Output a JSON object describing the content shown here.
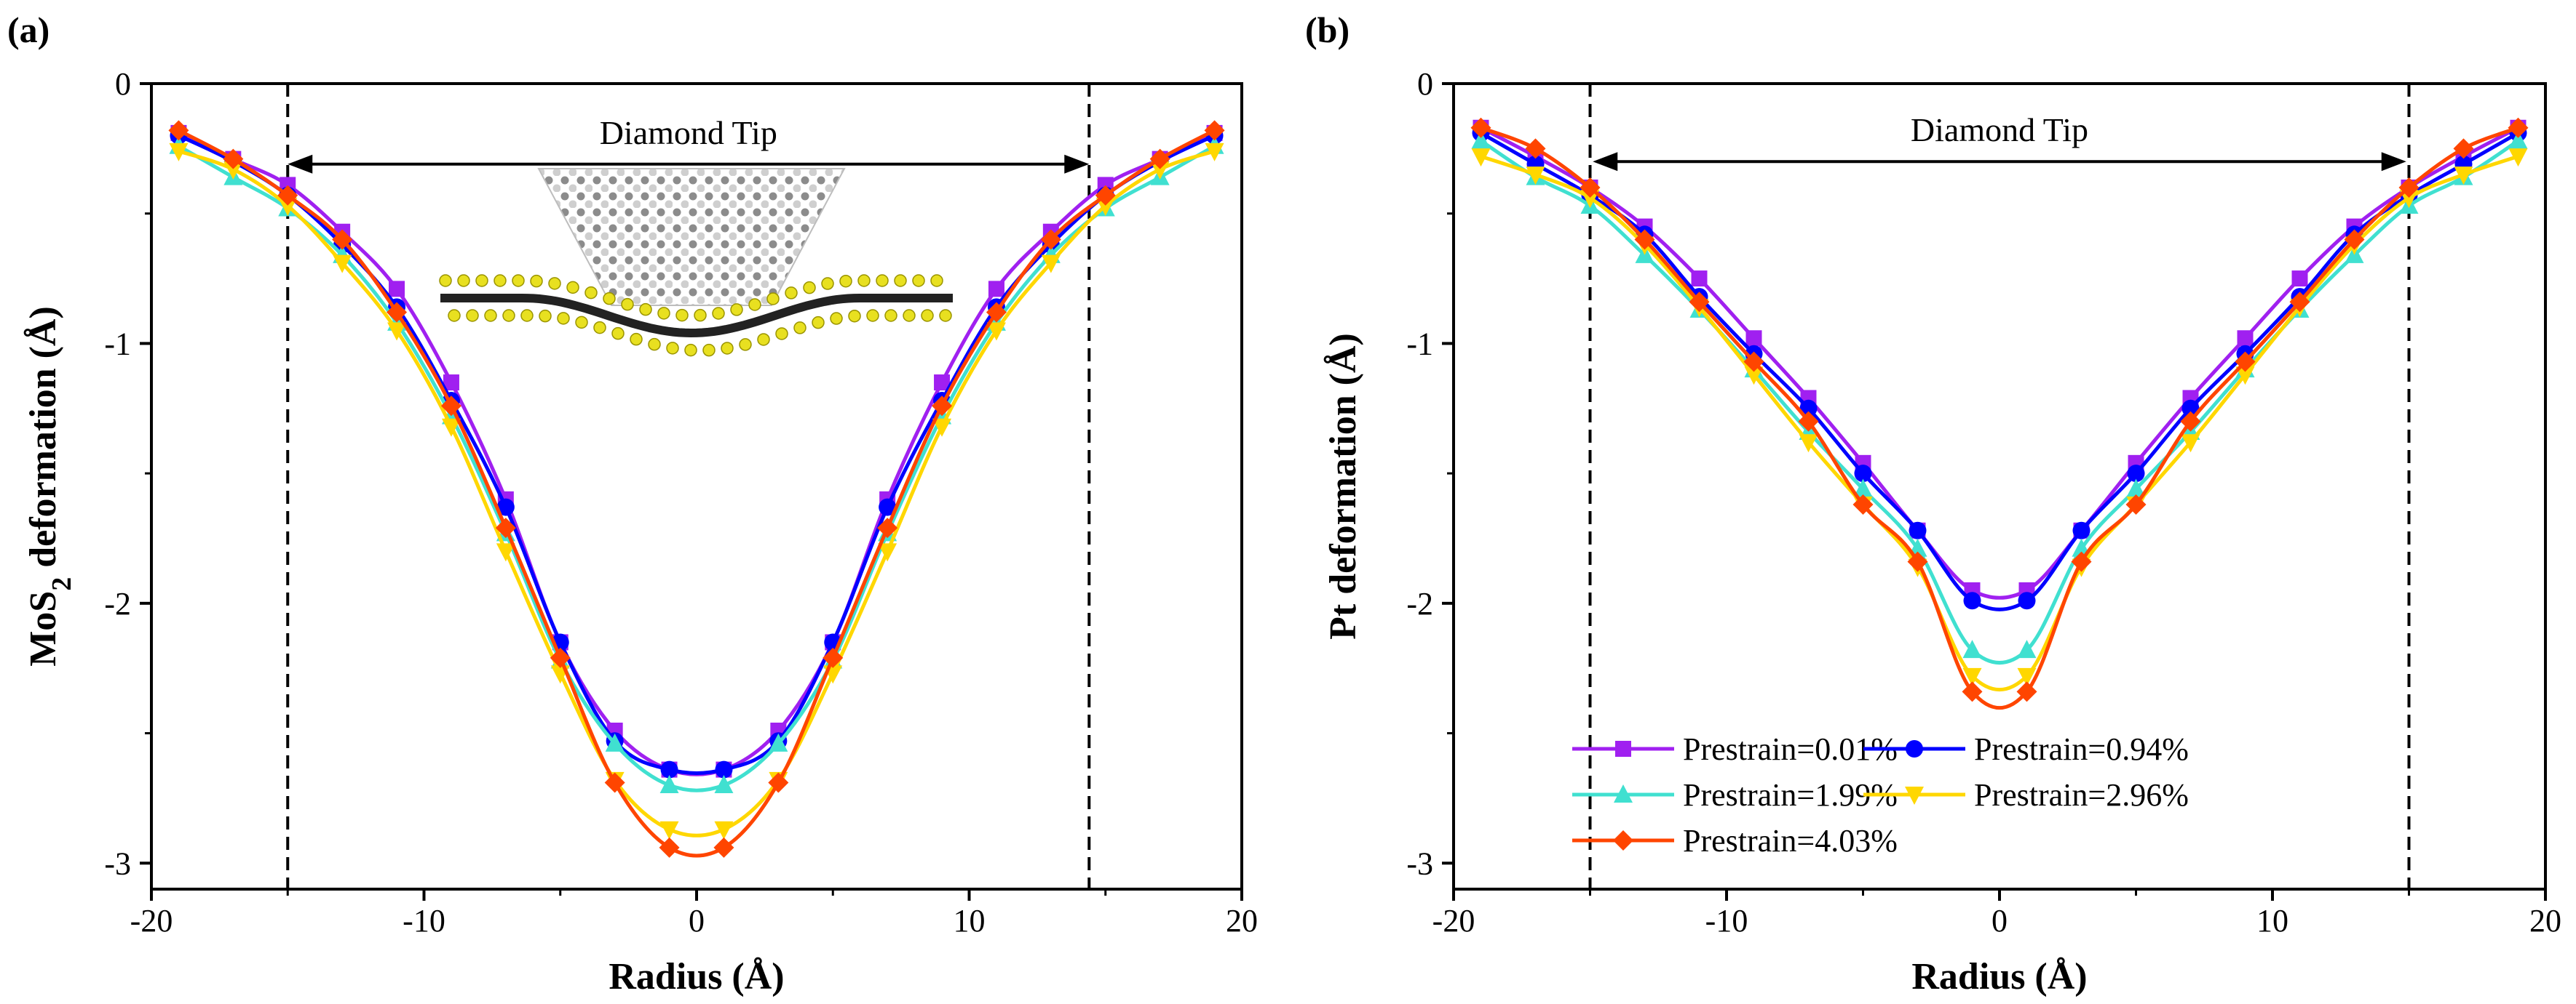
{
  "chart_data": [
    {
      "panel": "(a)",
      "type": "line",
      "title": "",
      "xlabel": "Radius (Å)",
      "ylabel": "MoS2 deformation (Å)",
      "ylabel_main": "MoS",
      "ylabel_sub": "2",
      "ylabel_rest": " deformation (Å)",
      "xlim": [
        -20,
        20
      ],
      "ylim": [
        -3.1,
        0
      ],
      "xticks": [
        -20,
        -10,
        0,
        10,
        20
      ],
      "yticks": [
        0,
        -1,
        -2,
        -3
      ],
      "xtick_labels": [
        "-20",
        "-10",
        "0",
        "10",
        "20"
      ],
      "ytick_labels": [
        "0",
        "-1",
        "-2",
        "-3"
      ],
      "grid": false,
      "annotation": {
        "text": "Diamond Tip",
        "x_from": -15,
        "x_to": 14.4,
        "y": -0.31
      },
      "dashed_lines_x": [
        -15,
        14.4
      ],
      "inset": "diamond-tip-on-MoS2-structure",
      "x": [
        -19,
        -17,
        -15,
        -13,
        -11,
        -9,
        -7,
        -5,
        -3,
        -1,
        1,
        3,
        5,
        7,
        9,
        11,
        13,
        15,
        17,
        19
      ],
      "series": [
        {
          "name": "Prestrain=0.01%",
          "color": "#A020F0",
          "marker": "square",
          "values": [
            -0.19,
            -0.29,
            -0.39,
            -0.57,
            -0.79,
            -1.15,
            -1.6,
            -2.15,
            -2.49,
            -2.64,
            -2.64,
            -2.49,
            -2.15,
            -1.6,
            -1.15,
            -0.79,
            -0.57,
            -0.39,
            -0.29,
            -0.19
          ]
        },
        {
          "name": "Prestrain=0.94%",
          "color": "#0000FF",
          "marker": "circle",
          "values": [
            -0.2,
            -0.3,
            -0.43,
            -0.62,
            -0.86,
            -1.22,
            -1.63,
            -2.15,
            -2.53,
            -2.64,
            -2.64,
            -2.53,
            -2.15,
            -1.63,
            -1.22,
            -0.86,
            -0.62,
            -0.43,
            -0.3,
            -0.2
          ]
        },
        {
          "name": "Prestrain=1.99%",
          "color": "#40E0D0",
          "marker": "triangle-up",
          "values": [
            -0.24,
            -0.36,
            -0.48,
            -0.66,
            -0.92,
            -1.28,
            -1.73,
            -2.22,
            -2.54,
            -2.7,
            -2.7,
            -2.54,
            -2.22,
            -1.73,
            -1.28,
            -0.92,
            -0.66,
            -0.48,
            -0.36,
            -0.24
          ]
        },
        {
          "name": "Prestrain=2.96%",
          "color": "#FFD700",
          "marker": "triangle-down",
          "values": [
            -0.26,
            -0.33,
            -0.47,
            -0.69,
            -0.95,
            -1.32,
            -1.8,
            -2.27,
            -2.68,
            -2.87,
            -2.87,
            -2.68,
            -2.27,
            -1.8,
            -1.32,
            -0.95,
            -0.69,
            -0.47,
            -0.33,
            -0.26
          ]
        },
        {
          "name": "Prestrain=4.03%",
          "color": "#FF4500",
          "marker": "diamond",
          "values": [
            -0.18,
            -0.29,
            -0.43,
            -0.6,
            -0.88,
            -1.24,
            -1.71,
            -2.21,
            -2.69,
            -2.94,
            -2.94,
            -2.69,
            -2.21,
            -1.71,
            -1.24,
            -0.88,
            -0.6,
            -0.43,
            -0.29,
            -0.18
          ]
        }
      ]
    },
    {
      "panel": "(b)",
      "type": "line",
      "title": "",
      "xlabel": "Radius (Å)",
      "ylabel": "Pt deformation (Å)",
      "xlim": [
        -20,
        20
      ],
      "ylim": [
        -3.1,
        0
      ],
      "xticks": [
        -20,
        -10,
        0,
        10,
        20
      ],
      "yticks": [
        0,
        -1,
        -2,
        -3
      ],
      "xtick_labels": [
        "-20",
        "-10",
        "0",
        "10",
        "20"
      ],
      "ytick_labels": [
        "0",
        "-1",
        "-2",
        "-3"
      ],
      "grid": false,
      "annotation": {
        "text": "Diamond Tip",
        "x_from": -14.9,
        "x_to": 14.9,
        "y": -0.3
      },
      "dashed_lines_x": [
        -15,
        15
      ],
      "legend_placement": "bottom-right",
      "x": [
        -19,
        -17,
        -15,
        -13,
        -11,
        -9,
        -7,
        -5,
        -3,
        -1,
        1,
        3,
        5,
        7,
        9,
        11,
        13,
        15,
        17,
        19
      ],
      "series": [
        {
          "name": "Prestrain=0.01%",
          "color": "#A020F0",
          "marker": "square",
          "values": [
            -0.17,
            -0.28,
            -0.4,
            -0.55,
            -0.75,
            -0.98,
            -1.21,
            -1.46,
            -1.72,
            -1.95,
            -1.95,
            -1.72,
            -1.46,
            -1.21,
            -0.98,
            -0.75,
            -0.55,
            -0.4,
            -0.28,
            -0.17
          ]
        },
        {
          "name": "Prestrain=0.94%",
          "color": "#0000FF",
          "marker": "circle",
          "values": [
            -0.19,
            -0.31,
            -0.43,
            -0.58,
            -0.82,
            -1.04,
            -1.25,
            -1.5,
            -1.72,
            -1.99,
            -1.99,
            -1.72,
            -1.5,
            -1.25,
            -1.04,
            -0.82,
            -0.58,
            -0.43,
            -0.31,
            -0.19
          ]
        },
        {
          "name": "Prestrain=1.99%",
          "color": "#40E0D0",
          "marker": "triangle-up",
          "values": [
            -0.22,
            -0.36,
            -0.47,
            -0.66,
            -0.87,
            -1.1,
            -1.34,
            -1.56,
            -1.79,
            -2.18,
            -2.18,
            -1.79,
            -1.56,
            -1.34,
            -1.1,
            -0.87,
            -0.66,
            -0.47,
            -0.36,
            -0.22
          ]
        },
        {
          "name": "Prestrain=2.96%",
          "color": "#FFD700",
          "marker": "triangle-down",
          "values": [
            -0.28,
            -0.35,
            -0.44,
            -0.62,
            -0.86,
            -1.12,
            -1.38,
            -1.62,
            -1.86,
            -2.28,
            -2.28,
            -1.86,
            -1.62,
            -1.38,
            -1.12,
            -0.86,
            -0.62,
            -0.44,
            -0.35,
            -0.28
          ]
        },
        {
          "name": "Prestrain=4.03%",
          "color": "#FF4500",
          "marker": "diamond",
          "values": [
            -0.17,
            -0.25,
            -0.4,
            -0.6,
            -0.84,
            -1.07,
            -1.3,
            -1.62,
            -1.84,
            -2.34,
            -2.34,
            -1.84,
            -1.62,
            -1.3,
            -1.07,
            -0.84,
            -0.6,
            -0.4,
            -0.25,
            -0.17
          ]
        }
      ]
    }
  ]
}
